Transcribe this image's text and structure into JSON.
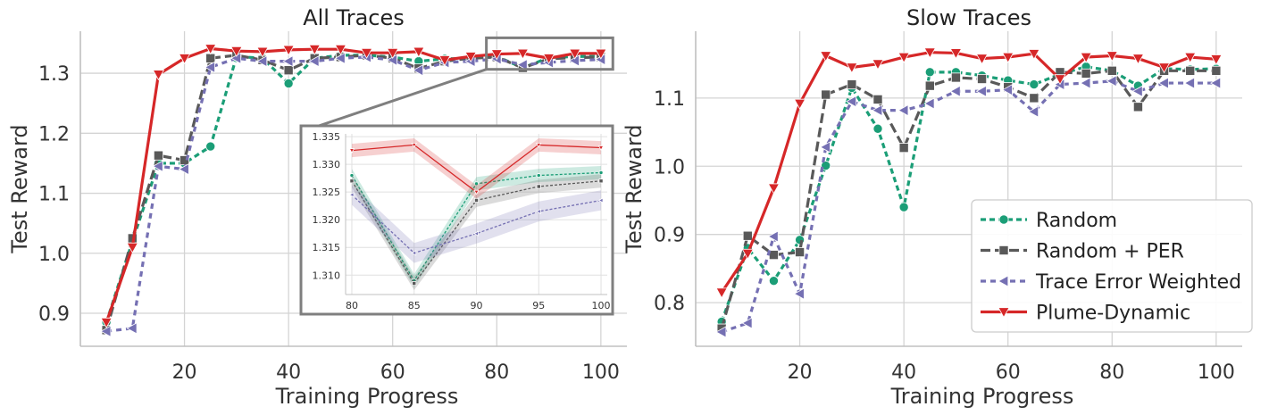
{
  "chart_data": [
    {
      "type": "line",
      "title": "All Traces",
      "xlabel": "Training Progress",
      "ylabel": "Test Reward",
      "xlim": [
        0,
        105
      ],
      "ylim": [
        0.845,
        1.37
      ],
      "xticks": [
        "20",
        "40",
        "60",
        "80",
        "100"
      ],
      "yticks": [
        "0.9",
        "1.0",
        "1.1",
        "1.2",
        "1.3"
      ],
      "grid": true,
      "x": [
        5,
        10,
        15,
        20,
        25,
        30,
        35,
        40,
        45,
        50,
        55,
        60,
        65,
        70,
        75,
        80,
        85,
        90,
        95,
        100
      ],
      "series": [
        {
          "name": "Random",
          "color": "#1b9e77",
          "dash": "dotted",
          "marker": "circle",
          "values": [
            0.885,
            1.02,
            1.15,
            1.15,
            1.178,
            1.328,
            1.325,
            1.283,
            1.325,
            1.33,
            1.33,
            1.327,
            1.32,
            1.324,
            1.325,
            1.328,
            1.309,
            1.326,
            1.328,
            1.328
          ]
        },
        {
          "name": "Random + PER",
          "color": "#595959",
          "dash": "dashed",
          "marker": "square",
          "values": [
            0.872,
            1.025,
            1.163,
            1.155,
            1.325,
            1.33,
            1.322,
            1.305,
            1.325,
            1.327,
            1.33,
            1.325,
            1.308,
            1.32,
            1.325,
            1.327,
            1.309,
            1.324,
            1.326,
            1.327
          ]
        },
        {
          "name": "Trace Error Weighted",
          "color": "#7570b3",
          "dash": "shortdash",
          "marker": "triangle-left",
          "values": [
            0.87,
            0.875,
            1.145,
            1.14,
            1.31,
            1.325,
            1.32,
            1.32,
            1.32,
            1.325,
            1.327,
            1.322,
            1.305,
            1.318,
            1.32,
            1.324,
            1.314,
            1.318,
            1.321,
            1.323
          ]
        },
        {
          "name": "Plume-Dynamic",
          "color": "#d62728",
          "dash": "solid",
          "marker": "triangle-down",
          "values": [
            0.885,
            1.01,
            1.298,
            1.325,
            1.341,
            1.337,
            1.336,
            1.339,
            1.34,
            1.34,
            1.334,
            1.334,
            1.336,
            1.322,
            1.328,
            1.332,
            1.333,
            1.325,
            1.333,
            1.333
          ]
        }
      ],
      "inset": {
        "xlim": [
          79.5,
          100.5
        ],
        "ylim": [
          1.3065,
          1.3355
        ],
        "xticks": [
          "80",
          "85",
          "90",
          "95",
          "100"
        ],
        "yticks": [
          "1.310",
          "1.315",
          "1.320",
          "1.325",
          "1.330",
          "1.335"
        ],
        "x": [
          80,
          85,
          90,
          95,
          100
        ],
        "series": [
          {
            "name": "Random",
            "values": [
              1.328,
              1.309,
              1.3265,
              1.328,
              1.3285
            ],
            "band": 0.0012
          },
          {
            "name": "Random + PER",
            "values": [
              1.327,
              1.3085,
              1.3235,
              1.326,
              1.327
            ],
            "band": 0.0012
          },
          {
            "name": "Trace Error Weighted",
            "values": [
              1.3245,
              1.314,
              1.3175,
              1.3215,
              1.3235
            ],
            "band": 0.0018
          },
          {
            "name": "Plume-Dynamic",
            "values": [
              1.3325,
              1.3335,
              1.325,
              1.3335,
              1.333
            ],
            "band": 0.0012
          }
        ]
      }
    },
    {
      "type": "line",
      "title": "Slow Traces",
      "xlabel": "Training Progress",
      "ylabel": "Test Reward",
      "xlim": [
        0,
        105
      ],
      "ylim": [
        0.736,
        1.198
      ],
      "xticks": [
        "20",
        "40",
        "60",
        "80",
        "100"
      ],
      "yticks": [
        "0.8",
        "0.9",
        "1.0",
        "1.1"
      ],
      "grid": true,
      "legend": "lower-right",
      "x": [
        5,
        10,
        15,
        20,
        25,
        30,
        35,
        40,
        45,
        50,
        55,
        60,
        65,
        70,
        75,
        80,
        85,
        90,
        95,
        100
      ],
      "series": [
        {
          "name": "Random",
          "color": "#1b9e77",
          "dash": "dotted",
          "marker": "circle",
          "values": [
            0.772,
            0.88,
            0.832,
            0.892,
            1.001,
            1.115,
            1.055,
            0.94,
            1.138,
            1.138,
            1.133,
            1.126,
            1.12,
            1.135,
            1.146,
            1.14,
            1.118,
            1.143,
            1.142,
            1.143
          ]
        },
        {
          "name": "Random + PER",
          "color": "#595959",
          "dash": "dashed",
          "marker": "square",
          "values": [
            0.762,
            0.898,
            0.87,
            0.874,
            1.105,
            1.12,
            1.098,
            1.027,
            1.118,
            1.13,
            1.128,
            1.116,
            1.1,
            1.138,
            1.136,
            1.14,
            1.087,
            1.14,
            1.14,
            1.14
          ]
        },
        {
          "name": "Trace Error Weighted",
          "color": "#7570b3",
          "dash": "shortdash",
          "marker": "triangle-left",
          "values": [
            0.757,
            0.77,
            0.897,
            0.813,
            1.028,
            1.095,
            1.082,
            1.082,
            1.092,
            1.11,
            1.11,
            1.112,
            1.08,
            1.12,
            1.122,
            1.125,
            1.11,
            1.122,
            1.122,
            1.122
          ]
        },
        {
          "name": "Plume-Dynamic",
          "color": "#d62728",
          "dash": "solid",
          "marker": "triangle-down",
          "values": [
            0.815,
            0.872,
            0.968,
            1.092,
            1.162,
            1.145,
            1.15,
            1.16,
            1.167,
            1.166,
            1.158,
            1.16,
            1.165,
            1.128,
            1.16,
            1.162,
            1.158,
            1.145,
            1.16,
            1.157
          ]
        }
      ]
    }
  ]
}
